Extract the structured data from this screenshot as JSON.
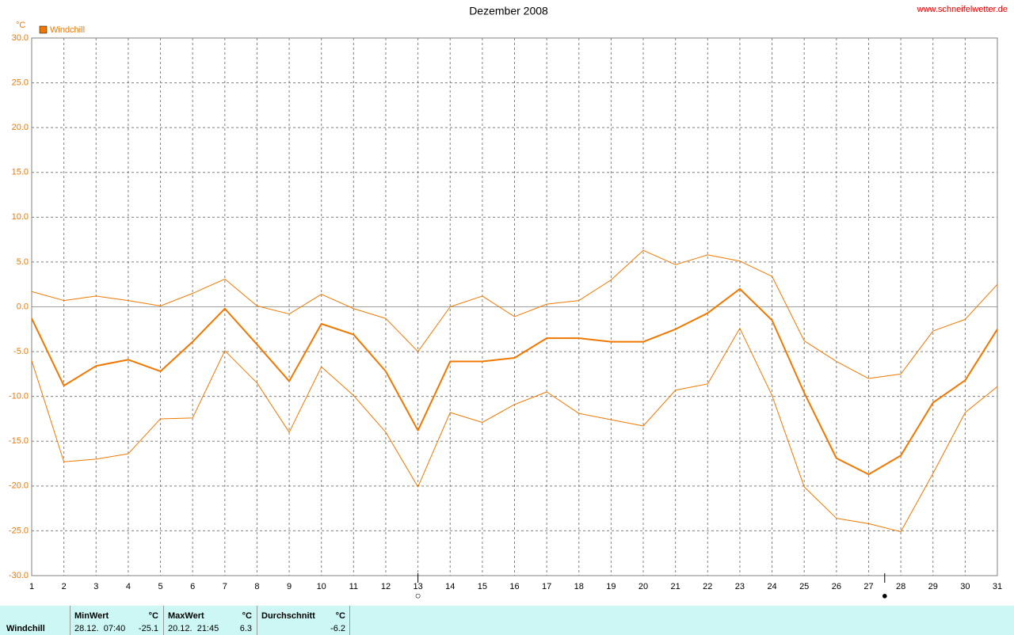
{
  "chart_data": {
    "type": "line",
    "title": "Dezember 2008",
    "source": "www.schneifelwetter.de",
    "y_unit": "°C",
    "legend": "Windchill",
    "legend_color": "#f07800",
    "x": [
      1,
      2,
      3,
      4,
      5,
      6,
      7,
      8,
      9,
      10,
      11,
      12,
      13,
      14,
      15,
      16,
      17,
      18,
      19,
      20,
      21,
      22,
      23,
      24,
      25,
      26,
      27,
      28,
      29,
      30,
      31
    ],
    "xlim": [
      1,
      31
    ],
    "xticks": [
      1,
      2,
      3,
      4,
      5,
      6,
      7,
      8,
      9,
      10,
      11,
      12,
      13,
      14,
      15,
      16,
      17,
      18,
      19,
      20,
      21,
      22,
      23,
      24,
      25,
      26,
      27,
      28,
      29,
      30,
      31
    ],
    "ylim": [
      -30,
      30
    ],
    "yticks": [
      {
        "value": -30,
        "label": "-30.0"
      },
      {
        "value": -25,
        "label": "-25.0"
      },
      {
        "value": -20,
        "label": "-20.0"
      },
      {
        "value": -15,
        "label": "-15.0"
      },
      {
        "value": -10,
        "label": "-10.0"
      },
      {
        "value": -5,
        "label": "-5.0"
      },
      {
        "value": 0,
        "label": "0.0"
      },
      {
        "value": 5,
        "label": "5.0"
      },
      {
        "value": 10,
        "label": "10.0"
      },
      {
        "value": 15,
        "label": "15.0"
      },
      {
        "value": 20,
        "label": "20.0"
      },
      {
        "value": 25,
        "label": "25.0"
      },
      {
        "value": 30,
        "label": "30.0"
      }
    ],
    "grid": true,
    "series": [
      {
        "color": "#f07800",
        "width": 1,
        "values": [
          1.7,
          0.7,
          1.2,
          0.7,
          0.1,
          1.5,
          3.1,
          0.1,
          -0.8,
          1.4,
          -0.2,
          -1.3,
          -5.0,
          0.0,
          1.2,
          -1.1,
          0.3,
          0.7,
          3.0,
          6.3,
          4.7,
          5.8,
          5.1,
          3.4,
          -3.8,
          -6.1,
          -8.0,
          -7.5,
          -2.7,
          -1.4,
          2.5
        ]
      },
      {
        "name": "Windchill",
        "color": "#f07800",
        "width": 2,
        "values": [
          -1.3,
          -8.8,
          -6.6,
          -5.9,
          -7.2,
          -3.9,
          -0.2,
          -4.2,
          -8.3,
          -1.9,
          -3.1,
          -7.2,
          -13.8,
          -6.1,
          -6.1,
          -5.7,
          -3.5,
          -3.5,
          -3.9,
          -3.9,
          -2.5,
          -0.7,
          2.0,
          -1.5,
          -9.6,
          -16.9,
          -18.7,
          -16.6,
          -10.7,
          -8.2,
          -2.5
        ]
      },
      {
        "color": "#f07800",
        "width": 1,
        "values": [
          -6.0,
          -17.3,
          -17.0,
          -16.4,
          -12.5,
          -12.4,
          -4.9,
          -8.5,
          -14.0,
          -6.7,
          -9.9,
          -14.0,
          -20.1,
          -11.8,
          -12.9,
          -10.9,
          -9.5,
          -11.9,
          -12.6,
          -13.3,
          -9.3,
          -8.6,
          -2.4,
          -9.9,
          -20.1,
          -23.6,
          -24.2,
          -25.1,
          -18.6,
          -11.8,
          -8.9
        ]
      }
    ],
    "moon_phases": [
      {
        "x": 13,
        "label": "○"
      },
      {
        "x": 27.5,
        "label": "●"
      }
    ]
  },
  "summary": {
    "label": "Windchill",
    "columns": [
      {
        "header": "MinWert",
        "unit": "°C",
        "time": "28.12.  07:40",
        "value": -25.1
      },
      {
        "header": "MaxWert",
        "unit": "°C",
        "time": "20.12.  21:45",
        "value": 6.3
      },
      {
        "header": "Durchschnitt",
        "unit": "°C",
        "value": -6.2
      }
    ]
  }
}
